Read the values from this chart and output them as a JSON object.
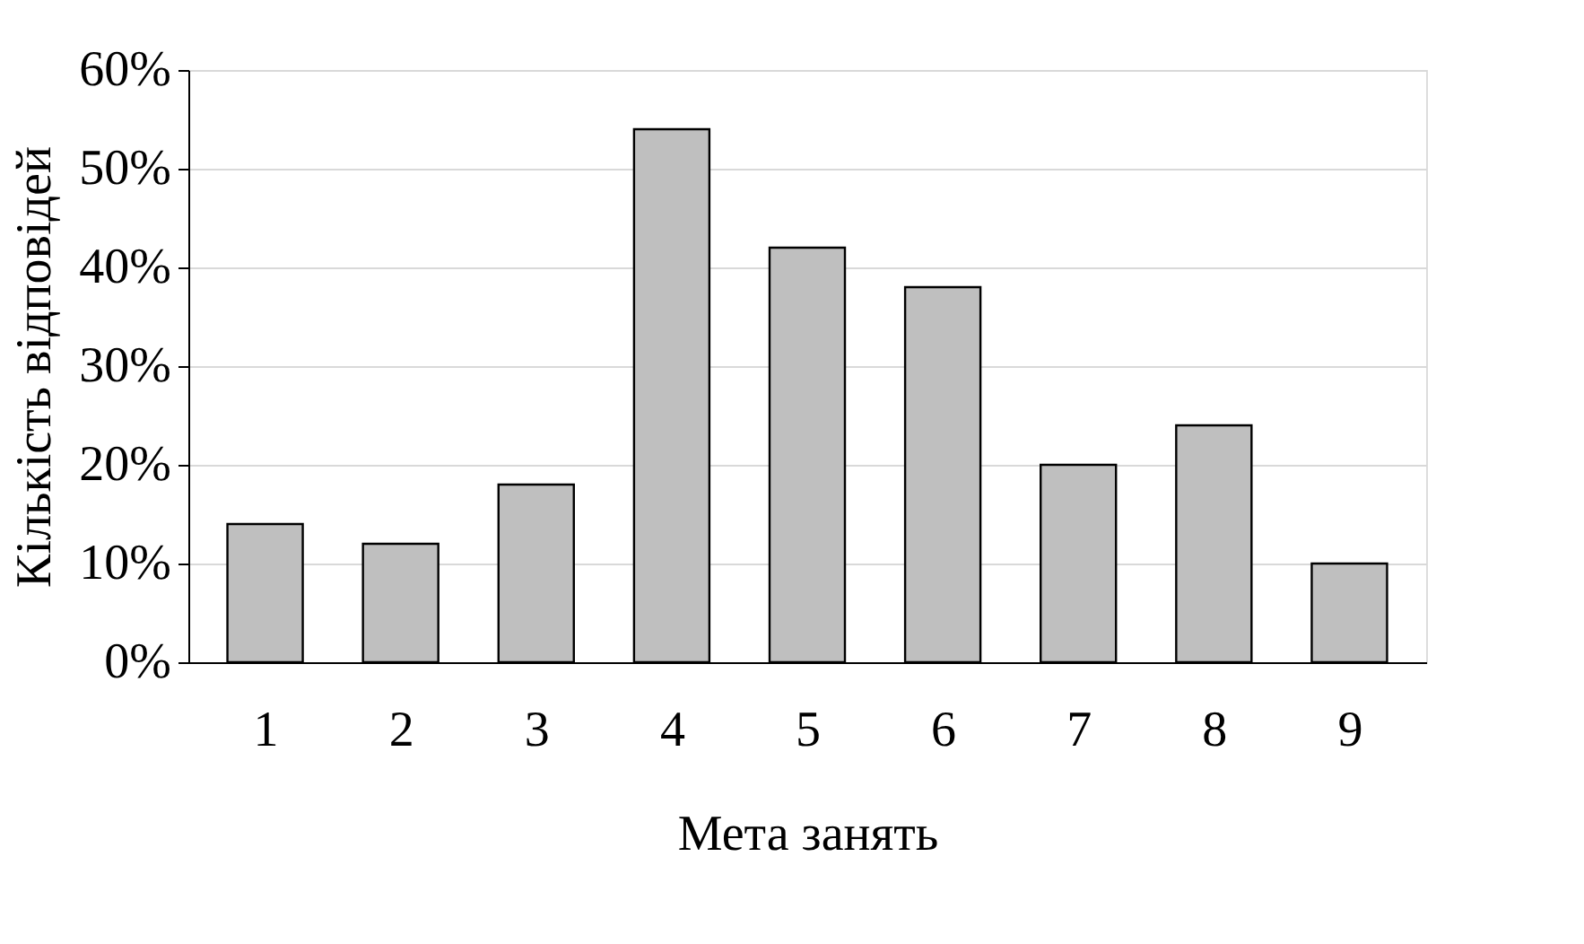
{
  "chart_data": {
    "type": "bar",
    "xlabel": "Мета занять",
    "ylabel": "Кількість відповідей",
    "categories": [
      "1",
      "2",
      "3",
      "4",
      "5",
      "6",
      "7",
      "8",
      "9"
    ],
    "values": [
      14,
      12,
      18,
      54,
      42,
      38,
      20,
      24,
      10
    ],
    "color": "#bfbfbf",
    "ylim": [
      0,
      60
    ],
    "yticks": [
      {
        "value": 0,
        "label": "0%"
      },
      {
        "value": 10,
        "label": "10%"
      },
      {
        "value": 20,
        "label": "20%"
      },
      {
        "value": 30,
        "label": "30%"
      },
      {
        "value": 40,
        "label": "40%"
      },
      {
        "value": 50,
        "label": "50%"
      },
      {
        "value": 60,
        "label": "60%"
      }
    ],
    "grid": "y"
  }
}
